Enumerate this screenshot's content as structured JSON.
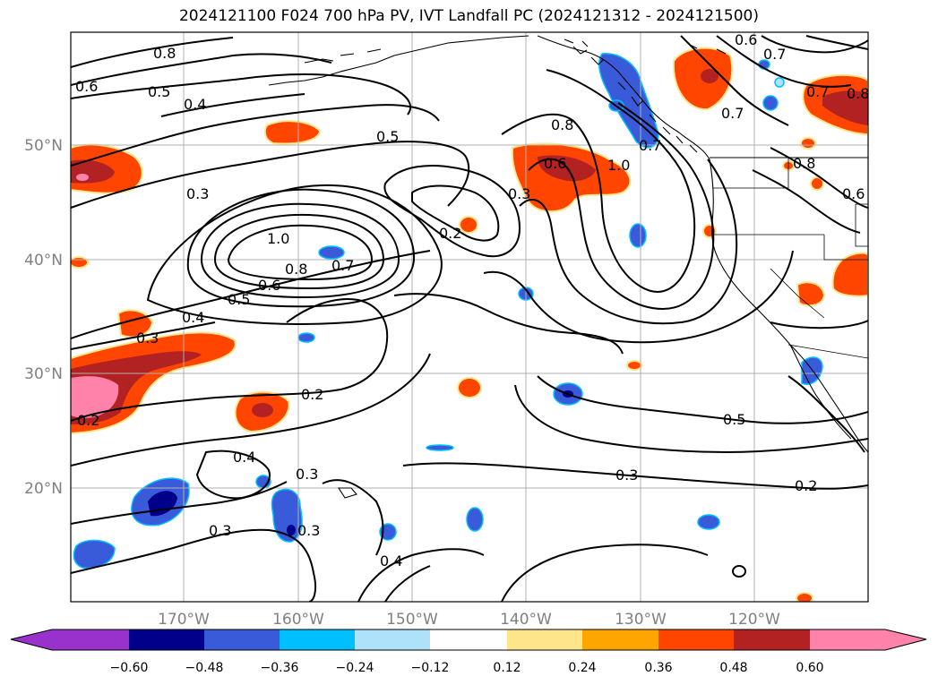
{
  "title": "2024121100 F024 700 hPa PV, IVT Landfall PC (2024121312 - 2024121500)",
  "map": {
    "lon_ticks": [
      "170°W",
      "160°W",
      "150°W",
      "140°W",
      "130°W",
      "120°W"
    ],
    "lat_ticks": [
      "50°N",
      "40°N",
      "30°N",
      "20°N"
    ],
    "contour_labels": [
      "0.8",
      "0.6",
      "0.5",
      "0.4",
      "0.5",
      "0.3",
      "1.0",
      "0.8",
      "0.7",
      "0.5",
      "0.6",
      "0.4",
      "0.3",
      "0.2",
      "0.2",
      "0.4",
      "0.3",
      "0.3",
      "0.3",
      "0.4",
      "0.2",
      "0.8",
      "0.6",
      "1.0",
      "0.7",
      "0.3",
      "0.5",
      "0.3",
      "0.2",
      "0.6",
      "0.7",
      "0.7",
      "0.8",
      "0.7",
      "0.8",
      "0.6"
    ]
  },
  "colorbar": {
    "ticks": [
      "−0.60",
      "−0.48",
      "−0.36",
      "−0.24",
      "−0.12",
      "0.12",
      "0.24",
      "0.36",
      "0.48",
      "0.60"
    ],
    "colors": [
      "#9932cc",
      "#00008b",
      "#3a5bd9",
      "#00bfff",
      "#aee2fa",
      "#ffffff",
      "#fde68a",
      "#ffa500",
      "#ff4500",
      "#b22222",
      "#ff82ab"
    ]
  },
  "colors": {
    "positive_high": "#ff82ab",
    "positive_mid": "#b22222",
    "positive": "#ff4500",
    "positive_low": "#ffa500",
    "positive_edge": "#fde68a",
    "negative_high": "#00008b",
    "negative": "#3a5bd9",
    "negative_low": "#00bfff"
  }
}
